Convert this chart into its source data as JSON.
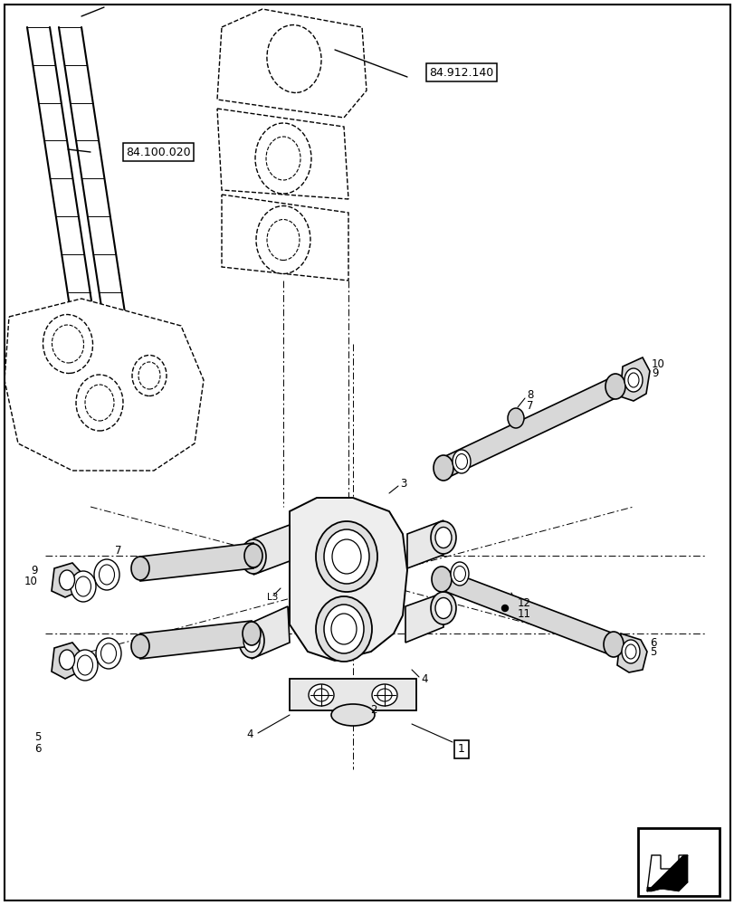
{
  "bg_color": "#ffffff",
  "lc": "#000000",
  "label_84100020": "84.100.020",
  "label_84912140": "84.912.140",
  "figsize": [
    8.12,
    10.0
  ],
  "dpi": 100
}
